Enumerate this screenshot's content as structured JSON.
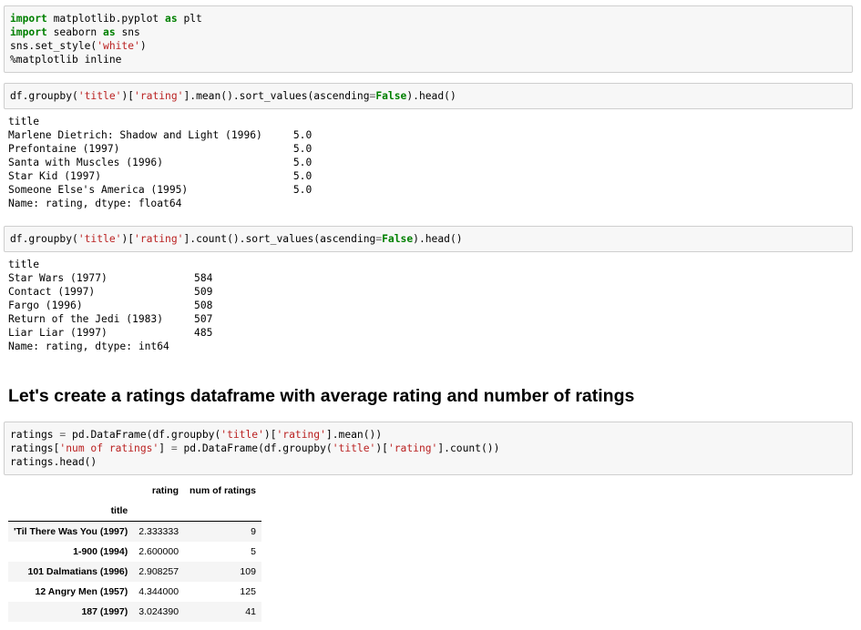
{
  "cell1": {
    "lines": [
      [
        {
          "t": "import",
          "c": "kw"
        },
        {
          "t": " matplotlib.pyplot ",
          "c": ""
        },
        {
          "t": "as",
          "c": "kw"
        },
        {
          "t": " plt",
          "c": ""
        }
      ],
      [
        {
          "t": "import",
          "c": "kw"
        },
        {
          "t": " seaborn ",
          "c": ""
        },
        {
          "t": "as",
          "c": "kw"
        },
        {
          "t": " sns",
          "c": ""
        }
      ],
      [
        {
          "t": "sns.set_style(",
          "c": ""
        },
        {
          "t": "'white'",
          "c": "str"
        },
        {
          "t": ")",
          "c": ""
        }
      ],
      [
        {
          "t": "%matplotlib inline",
          "c": "magic"
        }
      ]
    ]
  },
  "cell2": {
    "lines": [
      [
        {
          "t": "df.groupby(",
          "c": ""
        },
        {
          "t": "'title'",
          "c": "str"
        },
        {
          "t": ")[",
          "c": ""
        },
        {
          "t": "'rating'",
          "c": "str"
        },
        {
          "t": "].mean().sort_values(ascending",
          "c": ""
        },
        {
          "t": "=",
          "c": "op"
        },
        {
          "t": "False",
          "c": "kwc"
        },
        {
          "t": ").head()",
          "c": ""
        }
      ]
    ]
  },
  "output2": {
    "lines": [
      "title",
      "Marlene Dietrich: Shadow and Light (1996)     5.0",
      "Prefontaine (1997)                            5.0",
      "Santa with Muscles (1996)                     5.0",
      "Star Kid (1997)                               5.0",
      "Someone Else's America (1995)                 5.0",
      "Name: rating, dtype: float64"
    ]
  },
  "cell3": {
    "lines": [
      [
        {
          "t": "df.groupby(",
          "c": ""
        },
        {
          "t": "'title'",
          "c": "str"
        },
        {
          "t": ")[",
          "c": ""
        },
        {
          "t": "'rating'",
          "c": "str"
        },
        {
          "t": "].count().sort_values(ascending",
          "c": ""
        },
        {
          "t": "=",
          "c": "op"
        },
        {
          "t": "False",
          "c": "kwc"
        },
        {
          "t": ").head()",
          "c": ""
        }
      ]
    ]
  },
  "output3": {
    "lines": [
      "title",
      "Star Wars (1977)              584",
      "Contact (1997)                509",
      "Fargo (1996)                  508",
      "Return of the Jedi (1983)     507",
      "Liar Liar (1997)              485",
      "Name: rating, dtype: int64"
    ]
  },
  "heading": "Let's create a ratings dataframe with average rating and number of ratings",
  "cell4": {
    "lines": [
      [
        {
          "t": "ratings ",
          "c": ""
        },
        {
          "t": "=",
          "c": "op"
        },
        {
          "t": " pd.DataFrame(df.groupby(",
          "c": ""
        },
        {
          "t": "'title'",
          "c": "str"
        },
        {
          "t": ")[",
          "c": ""
        },
        {
          "t": "'rating'",
          "c": "str"
        },
        {
          "t": "].mean())",
          "c": ""
        }
      ],
      [
        {
          "t": "ratings[",
          "c": ""
        },
        {
          "t": "'num of ratings'",
          "c": "str"
        },
        {
          "t": "] ",
          "c": ""
        },
        {
          "t": "=",
          "c": "op"
        },
        {
          "t": " pd.DataFrame(df.groupby(",
          "c": ""
        },
        {
          "t": "'title'",
          "c": "str"
        },
        {
          "t": ")[",
          "c": ""
        },
        {
          "t": "'rating'",
          "c": "str"
        },
        {
          "t": "].count())",
          "c": ""
        }
      ],
      [
        {
          "t": "ratings.head()",
          "c": ""
        }
      ]
    ]
  },
  "dataframe": {
    "columns": [
      "rating",
      "num of ratings"
    ],
    "index_name": "title",
    "rows": [
      {
        "title": "'Til There Was You (1997)",
        "rating": "2.333333",
        "num": "9"
      },
      {
        "title": "1-900 (1994)",
        "rating": "2.600000",
        "num": "5"
      },
      {
        "title": "101 Dalmatians (1996)",
        "rating": "2.908257",
        "num": "109"
      },
      {
        "title": "12 Angry Men (1957)",
        "rating": "4.344000",
        "num": "125"
      },
      {
        "title": "187 (1997)",
        "rating": "3.024390",
        "num": "41"
      }
    ]
  }
}
